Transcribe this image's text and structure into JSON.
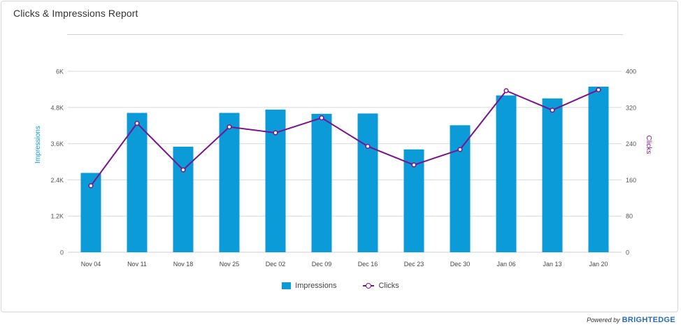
{
  "report": {
    "title": "Clicks & Impressions Report",
    "powered_by": "Powered by",
    "brand": "BRIGHTEDGE"
  },
  "colors": {
    "impressions": "#0b9bd8",
    "clicks": "#7b138c",
    "grid": "#d9d9d9",
    "axis": "#cccccc"
  },
  "chart_data": {
    "type": "bar",
    "categories": [
      "Nov 04",
      "Nov 11",
      "Nov 18",
      "Nov 25",
      "Dec 02",
      "Dec 09",
      "Dec 16",
      "Dec 23",
      "Dec 30",
      "Jan 06",
      "Jan 13",
      "Jan 20"
    ],
    "series": [
      {
        "name": "Impressions",
        "type": "bar",
        "axis": "left",
        "values": [
          2630,
          4620,
          3500,
          4620,
          4730,
          4590,
          4600,
          3410,
          4210,
          5200,
          5100,
          5490
        ]
      },
      {
        "name": "Clicks",
        "type": "line",
        "axis": "right",
        "values": [
          147,
          285,
          182,
          277,
          264,
          297,
          234,
          193,
          227,
          357,
          314,
          359
        ]
      }
    ],
    "ylabel": "Impressions",
    "ylabel_right": "Clicks",
    "ylim": [
      0,
      6000
    ],
    "ylim_right": [
      0,
      400
    ],
    "yticks": [
      0,
      1200,
      2400,
      3600,
      4800,
      6000
    ],
    "yticklabels": [
      "0",
      "1.2K",
      "2.4K",
      "3.6K",
      "4.8K",
      "6K"
    ],
    "yticks_right": [
      0,
      80,
      160,
      240,
      320,
      400
    ],
    "yticklabels_right": [
      "0",
      "80",
      "160",
      "240",
      "320",
      "400"
    ],
    "grid": true,
    "legend_position": "bottom-center"
  }
}
